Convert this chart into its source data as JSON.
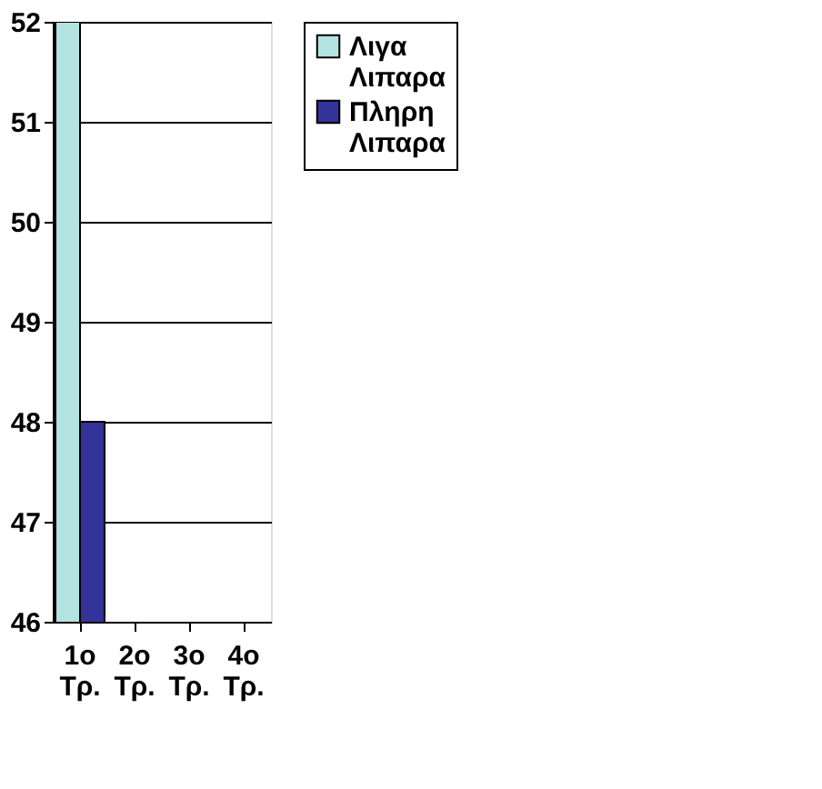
{
  "chart_data": {
    "type": "bar",
    "categories": [
      "1ο Τρ.",
      "2ο Τρ.",
      "3ο Τρ.",
      "4ο Τρ."
    ],
    "series": [
      {
        "name": "Λιγα Λιπαρα",
        "color": "#b3e3e0",
        "values": [
          52,
          null,
          null,
          null
        ]
      },
      {
        "name": "Πληρη Λιπαρα",
        "color": "#333399",
        "values": [
          48,
          null,
          null,
          null
        ]
      }
    ],
    "ylim": [
      46,
      52
    ],
    "yticks": [
      46,
      47,
      48,
      49,
      50,
      51,
      52
    ],
    "grid": "y",
    "legend": "right"
  }
}
